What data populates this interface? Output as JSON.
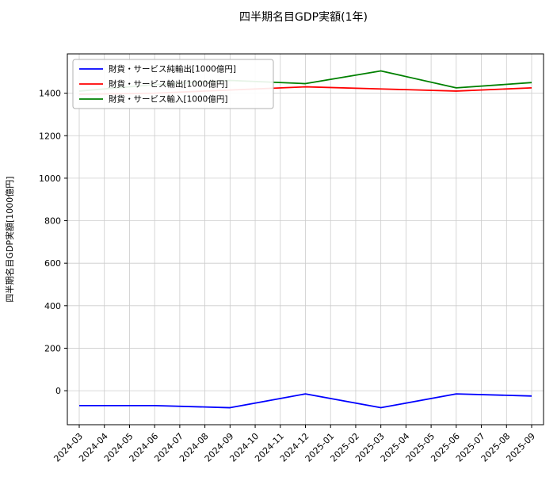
{
  "chart_data": {
    "type": "line",
    "title": "四半期名目GDP実額(1年)",
    "ylabel": "四半期名目GDP実額[1000億円]",
    "xlabel": "",
    "grid": true,
    "legend_position": "upper left",
    "background_color": "#ffffff",
    "grid_color": "#cccccc",
    "x_ticks": [
      "2024-03",
      "2024-04",
      "2024-05",
      "2024-06",
      "2024-07",
      "2024-08",
      "2024-09",
      "2024-10",
      "2024-11",
      "2024-12",
      "2025-01",
      "2025-02",
      "2025-03",
      "2025-04",
      "2025-05",
      "2025-06",
      "2025-07",
      "2025-08",
      "2025-09"
    ],
    "yticks": [
      0,
      200,
      400,
      600,
      800,
      1000,
      1200,
      1400
    ],
    "ylim": [
      -160,
      1585
    ],
    "series": [
      {
        "name": "財貨・サービス純輸出[1000億円]",
        "color": "#0000ff",
        "x": [
          "2024-03",
          "2024-06",
          "2024-09",
          "2024-12",
          "2025-03",
          "2025-06",
          "2025-09"
        ],
        "values": [
          -70,
          -70,
          -80,
          -15,
          -80,
          -15,
          -25
        ]
      },
      {
        "name": "財貨・サービス輸出[1000億円]",
        "color": "#ff0000",
        "x": [
          "2024-03",
          "2024-06",
          "2024-09",
          "2024-12",
          "2025-03",
          "2025-06",
          "2025-09"
        ],
        "values": [
          1395,
          1400,
          1415,
          1430,
          1420,
          1410,
          1425
        ]
      },
      {
        "name": "財貨・サービス輸入[1000億円]",
        "color": "#008000",
        "x": [
          "2024-03",
          "2024-06",
          "2024-09",
          "2024-12",
          "2025-03",
          "2025-06",
          "2025-09"
        ],
        "values": [
          1410,
          1440,
          1460,
          1445,
          1505,
          1425,
          1450
        ]
      }
    ]
  }
}
